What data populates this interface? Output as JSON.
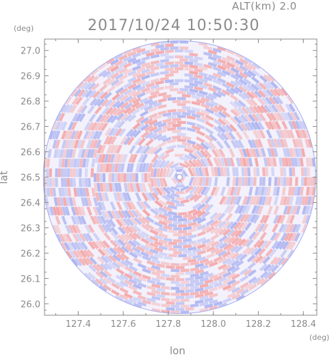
{
  "header": {
    "altitude_label": "ALT(km)  2.0",
    "timestamp": "2017/10/24 10:50:30"
  },
  "chart_data": {
    "type": "heatmap",
    "title": "2017/10/24 10:50:30",
    "subtitle": "ALT(km)  2.0",
    "xlabel": "lon",
    "ylabel": "lat",
    "x_unit": "(deg)",
    "y_unit": "(deg)",
    "xlim": [
      127.25,
      128.46
    ],
    "ylim": [
      25.955,
      27.045
    ],
    "x_ticks": [
      "127.4",
      "127.6",
      "127.8",
      "128.0",
      "128.2",
      "128.4"
    ],
    "x_tick_values": [
      127.4,
      127.6,
      127.8,
      128.0,
      128.2,
      128.4
    ],
    "y_ticks": [
      "26.0",
      "26.1",
      "26.2",
      "26.3",
      "26.4",
      "26.5",
      "26.6",
      "26.7",
      "26.8",
      "26.9",
      "27.0"
    ],
    "y_tick_values": [
      26.0,
      26.1,
      26.2,
      26.3,
      26.4,
      26.5,
      26.6,
      26.7,
      26.8,
      26.9,
      27.0
    ],
    "radar_center": {
      "lon": 127.85,
      "lat": 26.5
    },
    "radar_radius_deg_lat": 0.54,
    "colors": {
      "positive": "#f4a0a0",
      "negative": "#a8b0f0",
      "axis": "#8a8a8a"
    }
  }
}
